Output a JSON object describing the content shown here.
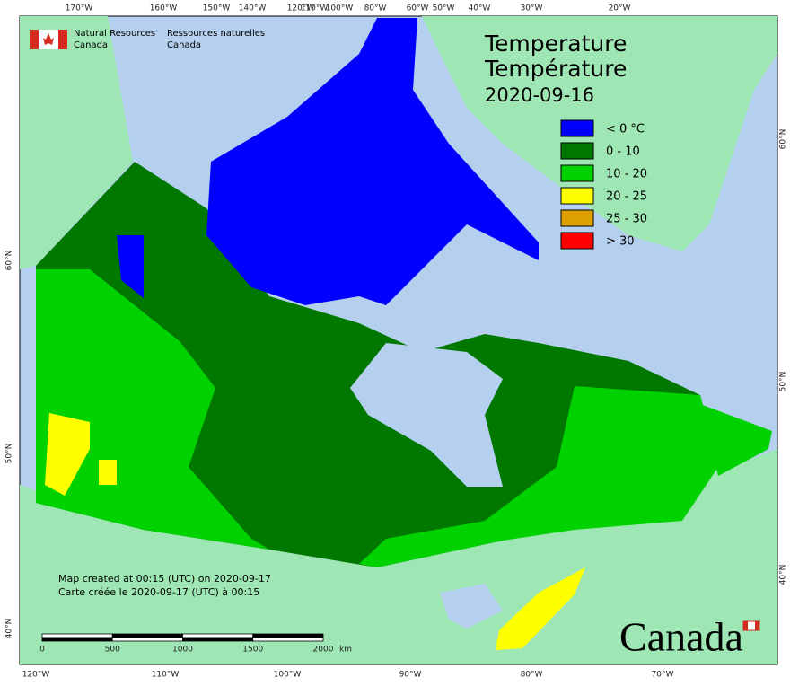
{
  "header": {
    "agency_en": "Natural Resources",
    "agency_en_2": "Canada",
    "agency_fr": "Ressources naturelles",
    "agency_fr_2": "Canada"
  },
  "title": {
    "line1": "Temperature",
    "line2": "Température",
    "date": "2020-09-16"
  },
  "legend": [
    {
      "label": "< 0 °C",
      "color": "#0000ff"
    },
    {
      "label": "0 - 10",
      "color": "#007800"
    },
    {
      "label": "10 - 20",
      "color": "#00d200"
    },
    {
      "label": "20 - 25",
      "color": "#ffff00"
    },
    {
      "label": "25 - 30",
      "color": "#dca000"
    },
    {
      "label": "> 30",
      "color": "#ff0000"
    }
  ],
  "graticule": {
    "top": [
      "170°W",
      "160°W",
      "150°W",
      "140°W",
      "120°W",
      "110°W",
      "100°W",
      "80°W",
      "60°W",
      "50°W",
      "40°W",
      "30°W",
      "20°W"
    ],
    "bottom": [
      "120°W",
      "110°W",
      "100°W",
      "90°W",
      "80°W",
      "70°W"
    ],
    "left": [
      "60°N",
      "50°N",
      "40°N"
    ],
    "right": [
      "60°N",
      "50°N",
      "40°N"
    ]
  },
  "footer": {
    "line1": "Map created at 00:15 (UTC) on 2020-09-17",
    "line2": "Carte créée le 2020-09-17 (UTC) à 00:15"
  },
  "scale": {
    "ticks": [
      0,
      500,
      1000,
      1500,
      2000
    ],
    "unit": "km"
  },
  "wordmark": "Canada"
}
